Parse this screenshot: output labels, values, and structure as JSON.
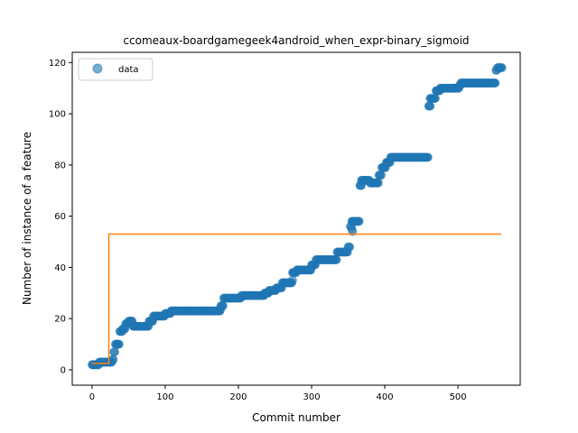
{
  "chart_data": {
    "type": "scatter",
    "title": "ccomeaux-boardgamegeek4android_when_expr-binary_sigmoid",
    "xlabel": "Commit number",
    "ylabel": "Number of instance of a feature",
    "xlim": [
      -27,
      585
    ],
    "ylim": [
      -6,
      124
    ],
    "xticks": [
      0,
      100,
      200,
      300,
      400,
      500
    ],
    "yticks": [
      0,
      20,
      40,
      60,
      80,
      100,
      120
    ],
    "grid": false,
    "legend": {
      "position": "top-left",
      "entries": [
        "data"
      ]
    },
    "colors": {
      "data": "#1f77b4",
      "fit": "#ff7f0e"
    },
    "series": [
      {
        "name": "data",
        "kind": "scatter",
        "steps": [
          [
            0,
            2
          ],
          [
            10,
            3
          ],
          [
            28,
            4
          ],
          [
            30,
            7
          ],
          [
            32,
            10
          ],
          [
            38,
            15
          ],
          [
            42,
            16
          ],
          [
            46,
            18
          ],
          [
            50,
            19
          ],
          [
            56,
            17
          ],
          [
            78,
            19
          ],
          [
            84,
            21
          ],
          [
            100,
            22
          ],
          [
            108,
            23
          ],
          [
            176,
            25
          ],
          [
            180,
            28
          ],
          [
            204,
            29
          ],
          [
            236,
            30
          ],
          [
            242,
            31
          ],
          [
            252,
            32
          ],
          [
            260,
            34
          ],
          [
            274,
            38
          ],
          [
            280,
            39
          ],
          [
            300,
            41
          ],
          [
            306,
            43
          ],
          [
            335,
            46
          ],
          [
            350,
            48
          ],
          [
            353,
            56
          ],
          [
            355,
            58
          ],
          [
            366,
            72
          ],
          [
            368,
            74
          ],
          [
            380,
            73
          ],
          [
            392,
            76
          ],
          [
            396,
            79
          ],
          [
            402,
            81
          ],
          [
            408,
            83
          ],
          [
            460,
            103
          ],
          [
            462,
            106
          ],
          [
            470,
            109
          ],
          [
            476,
            110
          ],
          [
            502,
            111
          ],
          [
            504,
            112
          ],
          [
            552,
            117
          ],
          [
            554,
            118
          ],
          [
            560,
            118
          ]
        ],
        "outliers": [
          [
            368,
            72
          ],
          [
            462,
            103
          ],
          [
            355,
            55
          ],
          [
            356,
            54
          ],
          [
            274,
            35
          ],
          [
            176,
            24
          ]
        ]
      },
      {
        "name": "",
        "kind": "line",
        "x": [
          0,
          23,
          23,
          559
        ],
        "y": [
          2.5,
          2.5,
          53,
          53
        ]
      }
    ]
  }
}
